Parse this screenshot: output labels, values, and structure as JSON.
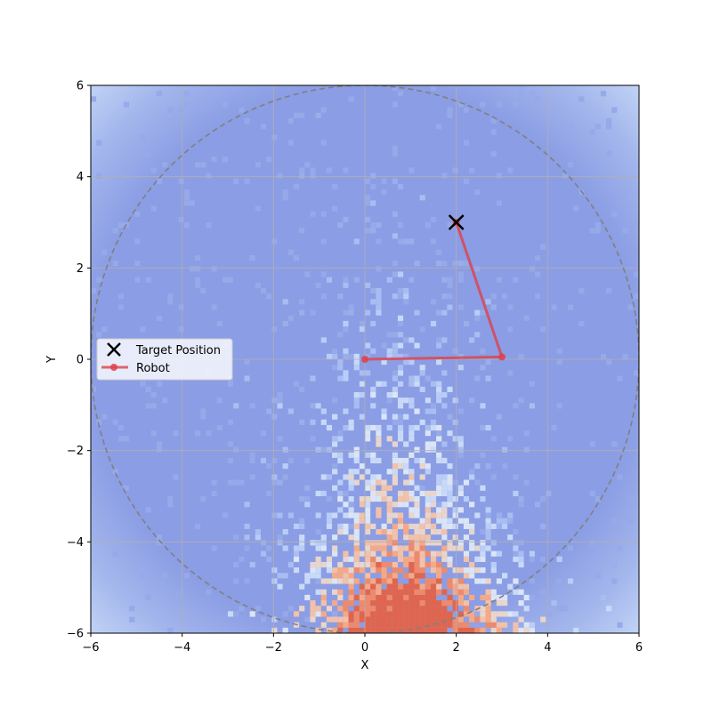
{
  "chart_data": {
    "type": "scatter",
    "title": "",
    "xlabel": "X",
    "ylabel": "Y",
    "xlim": [
      -6,
      6
    ],
    "ylim": [
      -6,
      6
    ],
    "x_ticks": [
      -6,
      -4,
      -2,
      0,
      2,
      4,
      6
    ],
    "y_ticks": [
      -6,
      -4,
      -2,
      0,
      2,
      4,
      6
    ],
    "x_tick_labels": [
      "−6",
      "−4",
      "−2",
      "0",
      "2",
      "4",
      "6"
    ],
    "y_tick_labels": [
      "−6",
      "−4",
      "−2",
      "0",
      "2",
      "4",
      "6"
    ],
    "grid": true,
    "legend_location": "center-left",
    "background": {
      "type": "heatmap",
      "colormap": "coolwarm",
      "hot_region": "x between -2 and 1, y between -6 and -2",
      "base_color": "#8b9de4",
      "corner_color": "#c0d4f5"
    },
    "reach_circle": {
      "center": [
        0,
        0
      ],
      "radius": 6,
      "style": "dashed",
      "color": "#808080"
    },
    "target": {
      "name": "Target Position",
      "x": 2,
      "y": 3,
      "marker": "x",
      "color": "#000000"
    },
    "robot": {
      "name": "Robot",
      "color": "#e0404a",
      "points": [
        {
          "x": 0,
          "y": 0
        },
        {
          "x": 3,
          "y": 0.05
        },
        {
          "x": 2,
          "y": 3
        }
      ]
    },
    "legend": [
      {
        "label": "Target Position",
        "marker": "x",
        "color": "#000000"
      },
      {
        "label": "Robot",
        "marker": "o-line",
        "color": "#e0404a"
      }
    ]
  }
}
